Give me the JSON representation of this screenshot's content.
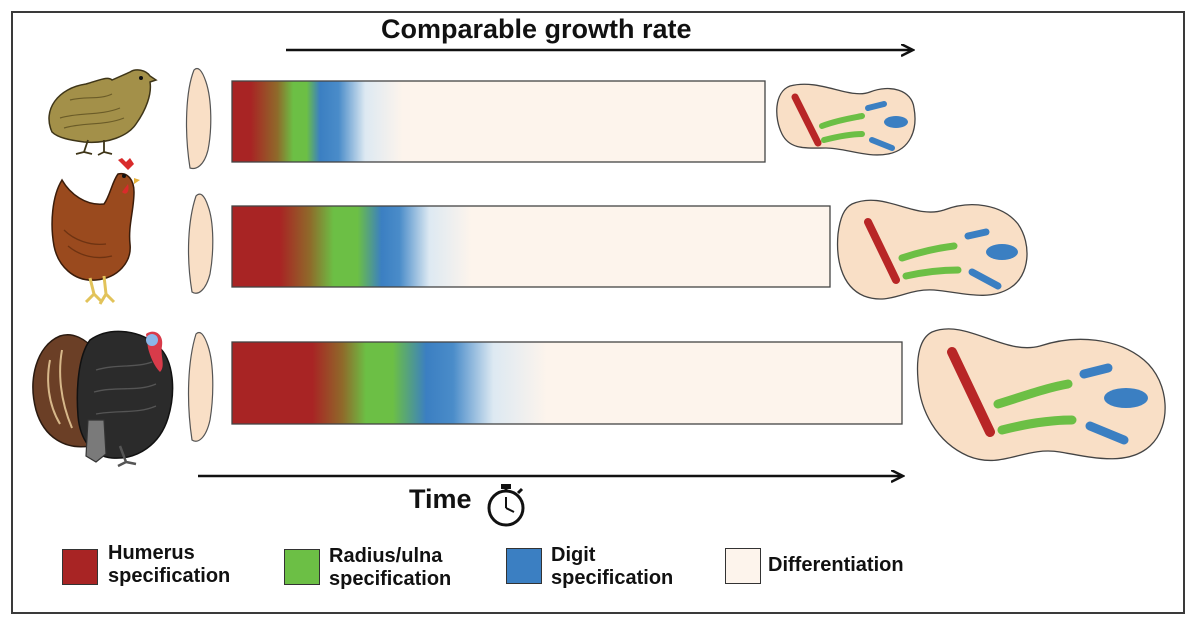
{
  "title": "Comparable growth rate",
  "time_label": "Time",
  "species": [
    "quail",
    "chicken",
    "turkey"
  ],
  "colors": {
    "humerus": "#a82424",
    "radius_ulna": "#6cbf45",
    "digit": "#3b7fc2",
    "differentiation": "#fdf4ec",
    "limb_fill": "#f9dfc6"
  },
  "legend": [
    {
      "line1": "Humerus",
      "line2": "specification",
      "color": "#a82424"
    },
    {
      "line1": "Radius/ulna",
      "line2": "specification",
      "color": "#6cbf45"
    },
    {
      "line1": "Digit",
      "line2": "specification",
      "color": "#3b7fc2"
    },
    {
      "line1": "Differentiation",
      "line2": "",
      "color": "#fdf4ec"
    }
  ]
}
